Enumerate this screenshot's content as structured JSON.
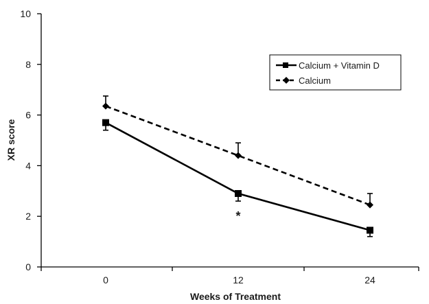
{
  "chart_data": {
    "type": "line",
    "xlabel": "Weeks of Treatment",
    "ylabel": "XR score",
    "x": [
      0,
      12,
      24
    ],
    "xticks": [
      "0",
      "12",
      "24"
    ],
    "ylim": [
      0,
      10
    ],
    "yticks": [
      "0",
      "2",
      "4",
      "6",
      "8",
      "10"
    ],
    "grid": false,
    "legend_position": "top-right",
    "series": [
      {
        "name": "Calcium + Vitamin D",
        "values": [
          5.7,
          2.9,
          1.45
        ],
        "error_lower": [
          0.3,
          0.3,
          0.25
        ],
        "error_upper": [
          0.0,
          0.0,
          0.0
        ],
        "marker": "square",
        "line_style": "solid",
        "color": "#000000"
      },
      {
        "name": "Calcium",
        "values": [
          6.35,
          4.4,
          2.45
        ],
        "error_lower": [
          0.0,
          0.0,
          0.0
        ],
        "error_upper": [
          0.4,
          0.5,
          0.45
        ],
        "marker": "diamond",
        "line_style": "dashed",
        "color": "#000000"
      }
    ],
    "annotations": [
      {
        "text": "*",
        "x": 12,
        "series": "Calcium + Vitamin D"
      }
    ]
  }
}
